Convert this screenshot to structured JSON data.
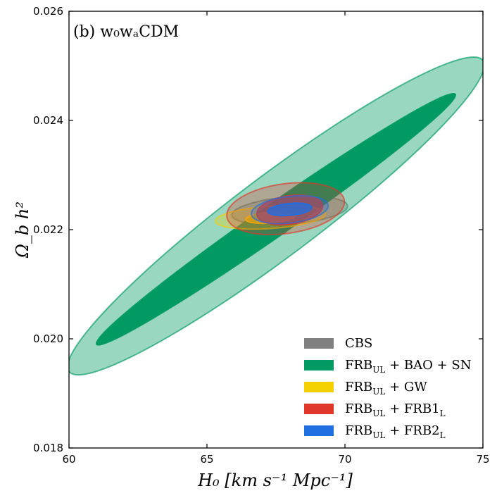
{
  "chart_data": {
    "type": "contour",
    "panel_label": "(b) w₀wₐCDM",
    "xlabel": "H₀ [km s⁻¹ Mpc⁻¹]",
    "ylabel": "Ω_b h²",
    "xlim": [
      60,
      75
    ],
    "ylim": [
      0.018,
      0.026
    ],
    "xticks": [
      60,
      65,
      70,
      75
    ],
    "yticks": [
      0.018,
      0.02,
      0.022,
      0.024,
      0.026
    ],
    "ytick_labels": [
      "0.018",
      "0.020",
      "0.022",
      "0.024",
      "0.026"
    ],
    "legend_position": "lower-right",
    "series": [
      {
        "name": "CBS",
        "legend_main": "CBS",
        "legend_sub": "",
        "legend_tail": "",
        "color": "#808080",
        "center": [
          68.0,
          0.02235
        ],
        "contours": [
          {
            "level": "68%",
            "x_extent": [
              66.9,
              69.1
            ],
            "y_extent": [
              0.02222,
              0.02248
            ]
          },
          {
            "level": "95%",
            "x_extent": [
              65.9,
              70.1
            ],
            "y_extent": [
              0.0221,
              0.0226
            ]
          }
        ]
      },
      {
        "name": "FRB_UL + BAO + SN",
        "legend_main": "FRB",
        "legend_sub": "UL",
        "legend_tail": " + BAO + SN",
        "color": "#009a62",
        "center": [
          67.5,
          0.0222
        ],
        "contours": [
          {
            "level": "68%",
            "x_extent": [
              61.0,
              74.0
            ],
            "y_extent": [
              0.0199,
              0.02448
            ]
          },
          {
            "level": "95%",
            "x_extent": [
              60.0,
              75.0
            ],
            "y_extent": [
              0.0194,
              0.0251
            ]
          }
        ]
      },
      {
        "name": "FRB_UL + GW",
        "legend_main": "FRB",
        "legend_sub": "UL",
        "legend_tail": " + GW",
        "color": "#f5d000",
        "center": [
          67.3,
          0.02222
        ],
        "contours": [
          {
            "level": "68%",
            "x_extent": [
              66.4,
              68.2
            ],
            "y_extent": [
              0.02212,
              0.02232
            ]
          },
          {
            "level": "95%",
            "x_extent": [
              65.3,
              69.3
            ],
            "y_extent": [
              0.02202,
              0.02243
            ]
          }
        ]
      },
      {
        "name": "FRB_UL + FRB1_L",
        "legend_main": "FRB",
        "legend_sub": "UL",
        "legend_tail": " + FRB1",
        "legend_tail_sub": "L",
        "color": "#e0372a",
        "center": [
          67.8,
          0.02238
        ],
        "contours": [
          {
            "level": "68%",
            "x_extent": [
              66.8,
              69.2
            ],
            "y_extent": [
              0.0221,
              0.02262
            ]
          },
          {
            "level": "95%",
            "x_extent": [
              65.7,
              70.0
            ],
            "y_extent": [
              0.02193,
              0.02284
            ]
          }
        ]
      },
      {
        "name": "FRB_UL + FRB2_L",
        "legend_main": "FRB",
        "legend_sub": "UL",
        "legend_tail": " + FRB2",
        "legend_tail_sub": "L",
        "color": "#1f6fe0",
        "center": [
          68.0,
          0.02236
        ],
        "contours": [
          {
            "level": "68%",
            "x_extent": [
              67.2,
              68.8
            ],
            "y_extent": [
              0.02226,
              0.02248
            ]
          },
          {
            "level": "95%",
            "x_extent": [
              66.6,
              69.4
            ],
            "y_extent": [
              0.02212,
              0.02261
            ]
          }
        ]
      }
    ]
  }
}
